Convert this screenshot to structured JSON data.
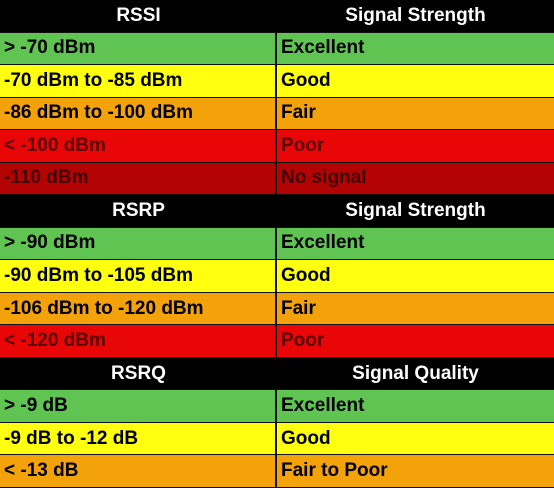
{
  "sections": [
    {
      "header": [
        "RSSI",
        "Signal Strength"
      ],
      "rows": [
        [
          "> -70 dBm",
          "Excellent"
        ],
        [
          "-70 dBm to -85 dBm",
          "Good"
        ],
        [
          "-86 dBm to -100 dBm",
          "Fair"
        ],
        [
          "< -100 dBm",
          "Poor"
        ],
        [
          "-110 dBm",
          "No signal"
        ]
      ]
    },
    {
      "header": [
        "RSRP",
        "Signal Strength"
      ],
      "rows": [
        [
          "> -90 dBm",
          "Excellent"
        ],
        [
          "-90 dBm to -105 dBm",
          "Good"
        ],
        [
          "-106 dBm to -120 dBm",
          "Fair"
        ],
        [
          "< -120 dBm",
          "Poor"
        ]
      ]
    },
    {
      "header": [
        "RSRQ",
        "Signal Quality"
      ],
      "rows": [
        [
          "> -9 dB",
          "Excellent"
        ],
        [
          "-9 dB to -12 dB",
          "Good"
        ],
        [
          "< -13 dB",
          "Fair to Poor"
        ]
      ]
    }
  ]
}
